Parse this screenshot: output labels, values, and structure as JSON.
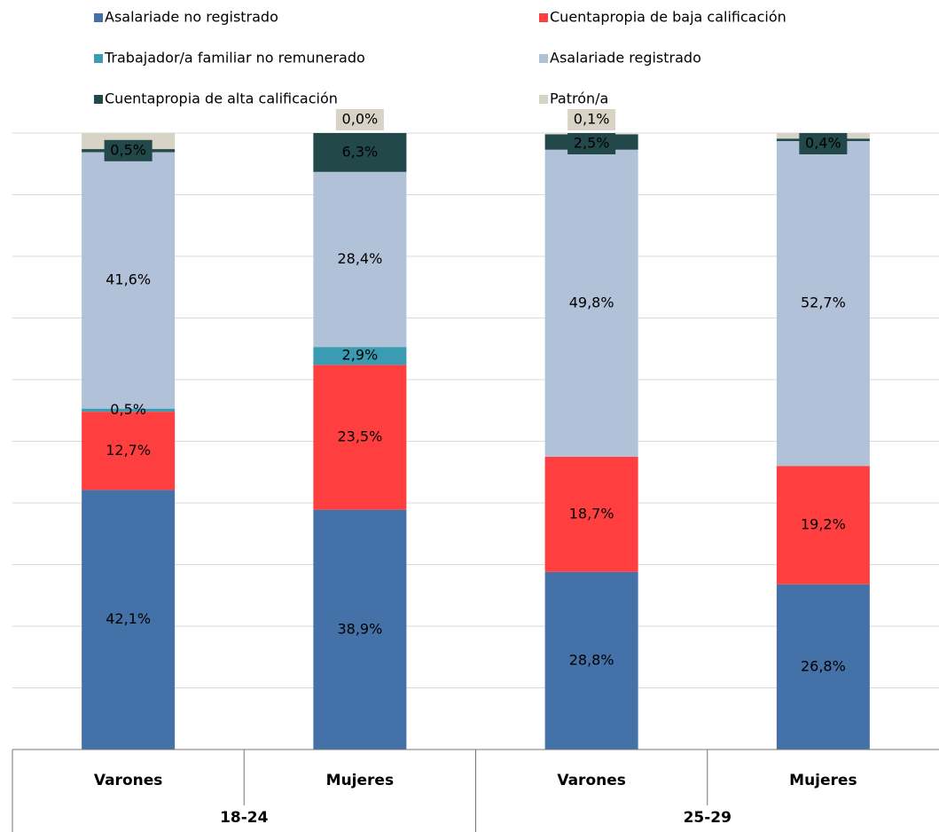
{
  "chart_data": {
    "type": "stacked_bar",
    "categories": [
      "Varones",
      "Mujeres",
      "Varones",
      "Mujeres"
    ],
    "groups": [
      "18-24",
      "25-29"
    ],
    "ylim": [
      0,
      100
    ],
    "yticks": [
      0,
      10,
      20,
      30,
      40,
      50,
      60,
      70,
      80,
      90,
      100
    ],
    "grid": true,
    "legend": "top",
    "series": [
      {
        "name": "Asalariade no registrado",
        "color": "#4472a8",
        "values": [
          42.1,
          38.9,
          28.8,
          26.8
        ],
        "value_labels": [
          "42,1%",
          "38,9%",
          "28,8%",
          "26,8%"
        ]
      },
      {
        "name": "Cuentapropia de baja calificación",
        "color": "#ff3f3f",
        "values": [
          12.7,
          23.5,
          18.7,
          19.2
        ],
        "value_labels": [
          "12,7%",
          "23,5%",
          "18,7%",
          "19,2%"
        ]
      },
      {
        "name": "Trabajador/a familiar no remunerado",
        "color": "#3a9bb3",
        "values": [
          0.5,
          2.9,
          null,
          null
        ],
        "value_labels": [
          "0,5%",
          "2,9%",
          null,
          null
        ]
      },
      {
        "name": "Asalariade registrado",
        "color": "#b0c1d8",
        "values": [
          41.6,
          28.4,
          49.8,
          52.7
        ],
        "value_labels": [
          "41,6%",
          "28,4%",
          "49,8%",
          "52,7%"
        ]
      },
      {
        "name": "Cuentapropia de alta calificación",
        "color": "#23484a",
        "values": [
          0.5,
          6.3,
          2.5,
          0.4
        ],
        "value_labels": [
          "0,5%",
          "6,3%",
          "2,5%",
          "0,4%"
        ]
      },
      {
        "name": "Patrón/a",
        "color": "#d8d3c7",
        "values": [
          2.6,
          0.0,
          0.1,
          0.9
        ],
        "value_labels": [
          null,
          "0,0%",
          "0,1%",
          null
        ]
      }
    ]
  }
}
